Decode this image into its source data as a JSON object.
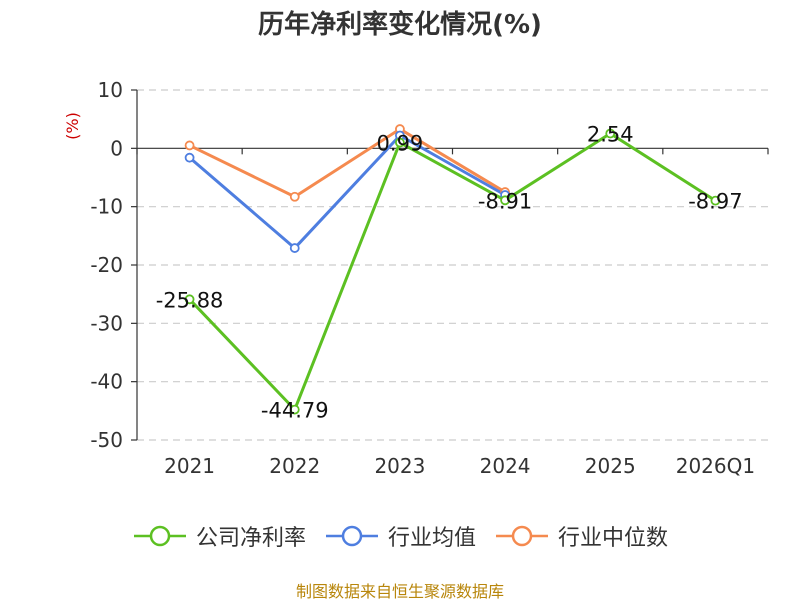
{
  "title": "历年净利率变化情况(%)",
  "source": "制图数据来自恒生聚源数据库",
  "chart_data": {
    "type": "line",
    "title": "历年净利率变化情况(%)",
    "ylabel": "(%)",
    "ylim": [
      -50,
      10
    ],
    "yticks": [
      10,
      0,
      -10,
      -20,
      -30,
      -40,
      -50
    ],
    "categories": [
      "2021",
      "2022",
      "2023",
      "2024",
      "2025",
      "2026Q1"
    ],
    "grid": true,
    "legend_position": "bottom",
    "series": [
      {
        "name": "公司净利率",
        "color": "#5cc022",
        "values": [
          -25.88,
          -44.79,
          0.99,
          -8.91,
          2.54,
          -8.97
        ],
        "labels": [
          "-25.88",
          "-44.79",
          "0.99",
          "-8.91",
          "2.54",
          "-8.97"
        ]
      },
      {
        "name": "行业均值",
        "color": "#4e7ee0",
        "values": [
          -1.6,
          -17.1,
          2.2,
          -8.0,
          null,
          null
        ]
      },
      {
        "name": "行业中位数",
        "color": "#f58a4f",
        "values": [
          0.5,
          -8.3,
          3.3,
          -7.5,
          null,
          null
        ]
      }
    ]
  }
}
